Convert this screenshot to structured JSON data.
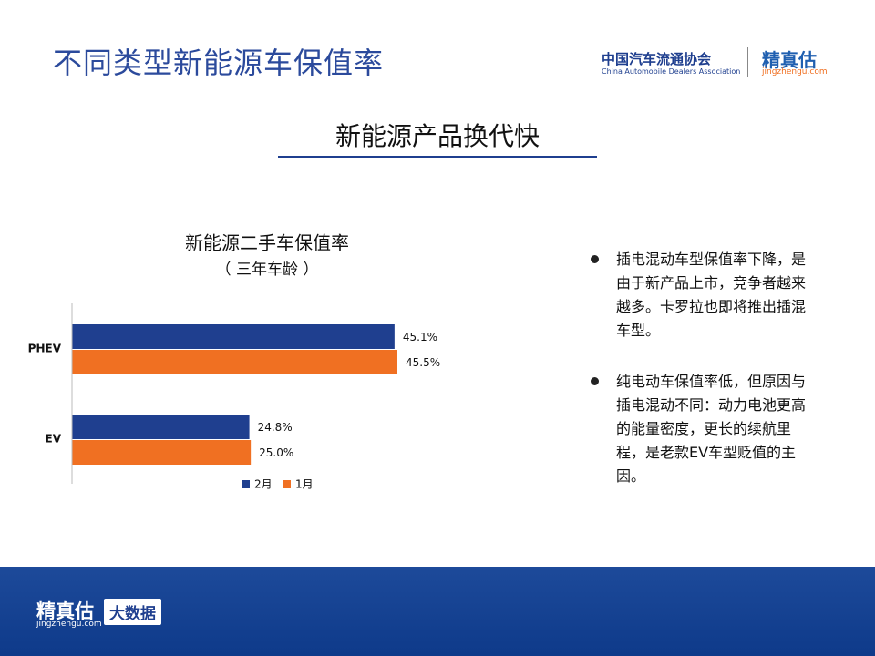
{
  "header": {
    "title": "不同类型新能源车保值率",
    "logo_cn": "中国汽车流通协会",
    "logo_en": "China Automobile Dealers Association",
    "brand": "精真估",
    "brand_url": "jingzhengu.com"
  },
  "heading": "新能源产品换代快",
  "bullets": [
    "插电混动车型保值率下降，是由于新产品上市，竞争者越来越多。卡罗拉也即将推出插混车型。",
    "纯电动车保值率低，但原因与插电混动不同：动力电池更高的能量密度，更长的续航里程，是老款EV车型贬值的主因。"
  ],
  "footer": {
    "brand": "精真估",
    "brand_url": "jingzhengu.com",
    "tag": "大数据"
  },
  "chart_data": {
    "type": "hbar",
    "title": "新能源二手车保值率",
    "subtitle": "（ 三年车龄 ）",
    "categories": [
      "PHEV",
      "EV"
    ],
    "series": [
      {
        "name": "2月",
        "color": "#1f3f8f",
        "values": [
          45.1,
          24.8
        ],
        "value_labels": [
          "45.1%",
          "24.8%"
        ]
      },
      {
        "name": "1月",
        "color": "#f07022",
        "values": [
          45.5,
          25.0
        ],
        "value_labels": [
          "45.5%",
          "25.0%"
        ]
      }
    ],
    "legend": "bottom"
  }
}
